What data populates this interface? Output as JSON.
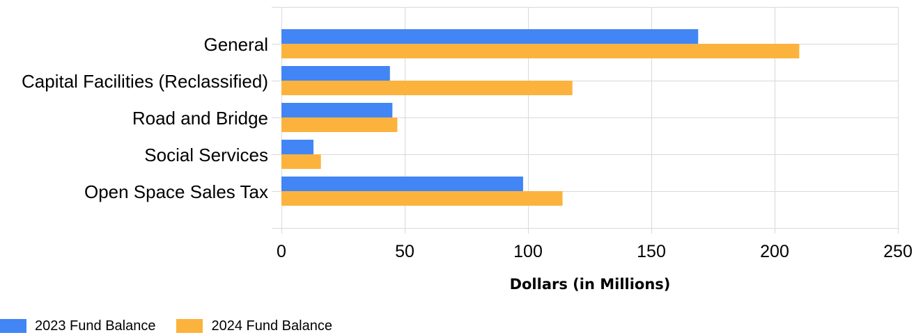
{
  "chart_data": {
    "type": "bar",
    "orientation": "horizontal",
    "categories": [
      "General",
      "Capital Facilities (Reclassified)",
      "Road and Bridge",
      "Social Services",
      "Open Space Sales Tax"
    ],
    "series": [
      {
        "name": "2023 Fund Balance",
        "color": "#4285f4",
        "values": [
          169,
          44,
          45,
          13,
          98
        ]
      },
      {
        "name": "2024 Fund Balance",
        "color": "#fbb33e",
        "values": [
          210,
          118,
          47,
          16,
          114
        ]
      }
    ],
    "xlabel": "Dollars (in Millions)",
    "ylabel": "",
    "title": "",
    "xlim": [
      0,
      250
    ],
    "xticks": [
      0,
      50,
      100,
      150,
      200,
      250
    ],
    "grid": true,
    "legend_position": "bottom-left"
  }
}
